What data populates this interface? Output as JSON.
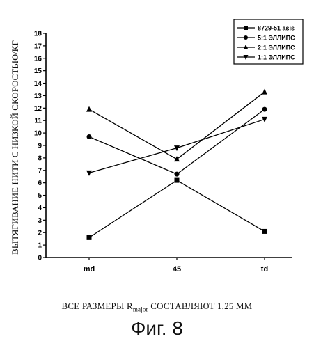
{
  "chart_data": {
    "type": "line",
    "categories": [
      "md",
      "45",
      "td"
    ],
    "ylim": [
      0,
      18
    ],
    "yticks": [
      0,
      1,
      2,
      3,
      4,
      5,
      6,
      7,
      8,
      9,
      10,
      11,
      12,
      13,
      14,
      15,
      16,
      17,
      18
    ],
    "ylabel": "ВЫТЯГИВАНИЕ НИТИ С НИЗКОЙ СКОРОСТЬЮ/КГ",
    "series": [
      {
        "name": "8729-51 asis",
        "marker": "square",
        "values": [
          1.6,
          6.2,
          2.1
        ]
      },
      {
        "name": "5:1 ЭЛЛИПС",
        "marker": "circle",
        "values": [
          9.7,
          6.7,
          11.9
        ]
      },
      {
        "name": "2:1 ЭЛЛИПС",
        "marker": "triangle-up",
        "values": [
          11.9,
          7.9,
          13.3
        ]
      },
      {
        "name": "1:1 ЭЛЛИПС",
        "marker": "triangle-down",
        "values": [
          6.8,
          8.8,
          11.1
        ]
      }
    ],
    "legend_position": "top-right",
    "grid": false
  },
  "caption": {
    "prefix": "ВСЕ РАЗМЕРЫ R",
    "subscript": "major",
    "suffix": " СОСТАВЛЯЮТ 1,25 ММ"
  },
  "figure_label": "Фиг. 8"
}
